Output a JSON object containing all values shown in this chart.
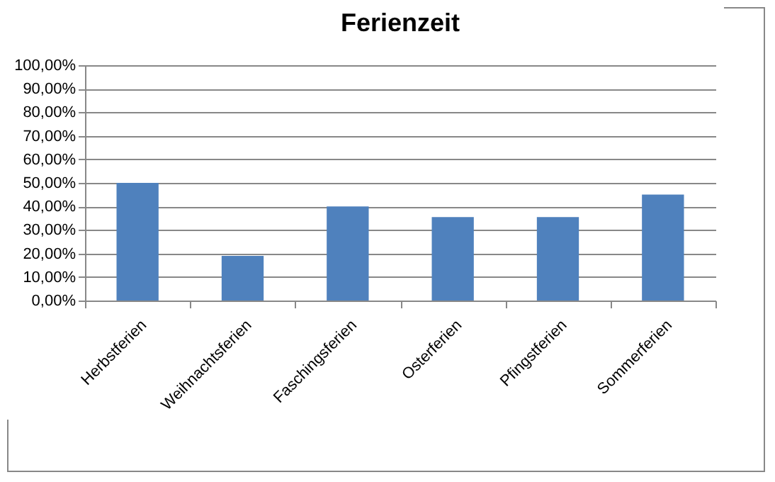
{
  "chart_data": {
    "type": "bar",
    "title": "Ferienzeit",
    "categories": [
      "Herbstferien",
      "Weihnachtsferien",
      "Faschingsferien",
      "Osterferien",
      "Pfingstferien",
      "Sommerferien"
    ],
    "values": [
      50,
      19,
      40,
      35.5,
      35.5,
      45
    ],
    "color": "#4f81bd",
    "ylim": [
      0,
      100
    ],
    "yticks": [
      {
        "value": 0,
        "label": "0,00%"
      },
      {
        "value": 10,
        "label": "10,00%"
      },
      {
        "value": 20,
        "label": "20,00%"
      },
      {
        "value": 30,
        "label": "30,00%"
      },
      {
        "value": 40,
        "label": "40,00%"
      },
      {
        "value": 50,
        "label": "50,00%"
      },
      {
        "value": 60,
        "label": "60,00%"
      },
      {
        "value": 70,
        "label": "70,00%"
      },
      {
        "value": 80,
        "label": "80,00%"
      },
      {
        "value": 90,
        "label": "90,00%"
      },
      {
        "value": 100,
        "label": "100,00%"
      }
    ],
    "grid": "y"
  }
}
